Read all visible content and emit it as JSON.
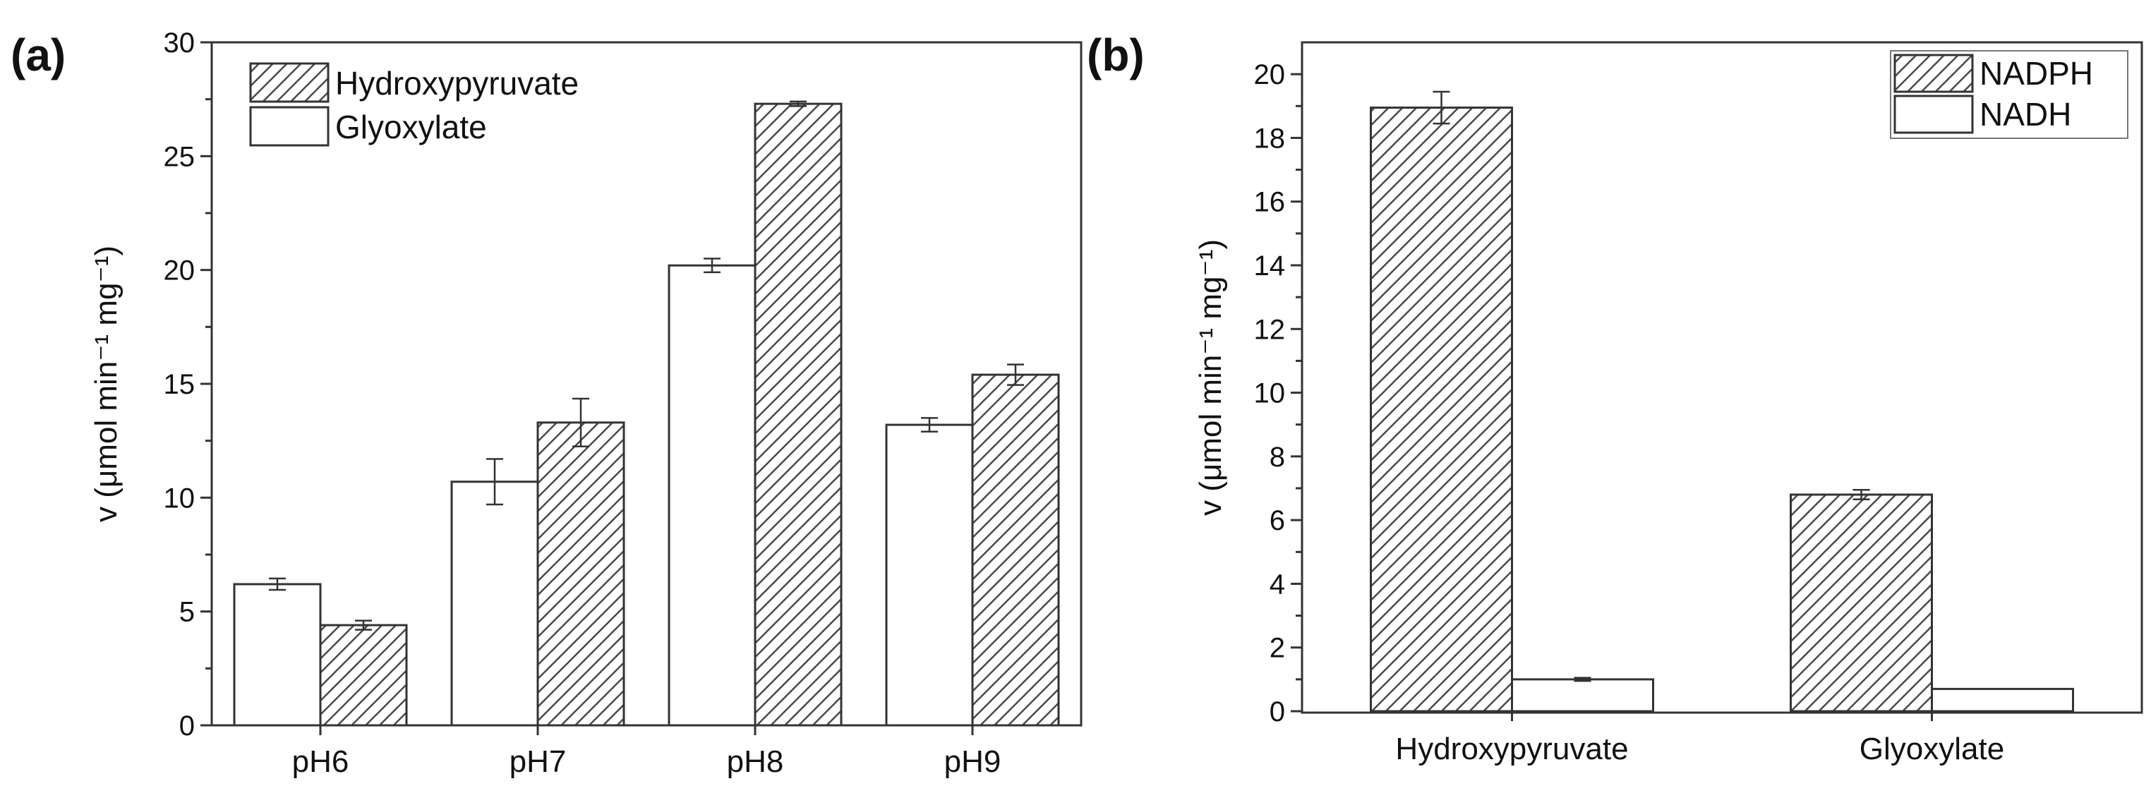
{
  "chart_data": [
    {
      "panel": "(a)",
      "type": "bar",
      "categories": [
        "pH6",
        "pH7",
        "pH8",
        "pH9"
      ],
      "series": [
        {
          "name": "Glyoxylate",
          "pattern": "open",
          "values": [
            6.2,
            10.7,
            20.2,
            13.2
          ],
          "errors": [
            0.25,
            1.0,
            0.3,
            0.3
          ]
        },
        {
          "name": "Hydroxypyruvate",
          "pattern": "hatched",
          "values": [
            4.4,
            13.3,
            27.3,
            15.4
          ],
          "errors": [
            0.2,
            1.05,
            0.1,
            0.45
          ]
        }
      ],
      "legend_order": [
        "Hydroxypyruvate",
        "Glyoxylate"
      ],
      "legend": "top-left",
      "ylabel": "v (μmol min⁻¹ mg⁻¹)",
      "xlabel": "",
      "ylim": [
        0,
        30
      ],
      "yticks": [
        0,
        5,
        10,
        15,
        20,
        25,
        30
      ],
      "grid": false
    },
    {
      "panel": "(b)",
      "type": "bar",
      "categories": [
        "Hydroxypyruvate",
        "Glyoxylate"
      ],
      "series": [
        {
          "name": "NADPH",
          "pattern": "hatched",
          "values": [
            18.95,
            6.8
          ],
          "errors": [
            0.5,
            0.15
          ]
        },
        {
          "name": "NADH",
          "pattern": "open",
          "values": [
            1.0,
            0.7
          ],
          "errors": [
            0.05,
            0.0
          ]
        }
      ],
      "legend_order": [
        "NADPH",
        "NADH"
      ],
      "legend": "top-right",
      "ylabel": "v (μmol min⁻¹ mg⁻¹)",
      "xlabel": "",
      "ylim": [
        0,
        21
      ],
      "yticks": [
        0,
        2,
        4,
        6,
        8,
        10,
        12,
        14,
        16,
        18,
        20
      ],
      "grid": false
    }
  ],
  "colors": {
    "hatch": "#4a4a4a",
    "hatch_bg": "#ffffff",
    "bar_edge": "#333333",
    "axis": "#333333"
  }
}
